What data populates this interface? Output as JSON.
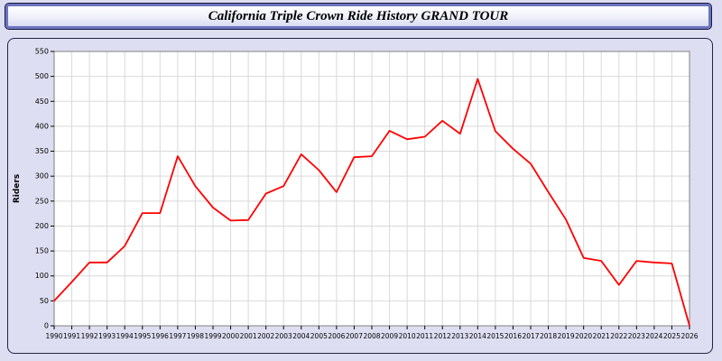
{
  "window": {
    "title": "California Triple Crown Ride History GRAND TOUR"
  },
  "colors": {
    "page_background": "#dedef2",
    "panel_border": "#222244",
    "title_border": "#6a74c0",
    "plot_background": "#ffffff",
    "grid_line": "#d9d9d9",
    "axis_line": "#808080",
    "line_color": "#ff0000",
    "text_color": "#000000"
  },
  "chart_data": {
    "type": "line",
    "title": "California Triple Crown Ride History GRAND TOUR",
    "xlabel": "",
    "ylabel": "Riders",
    "ylim": [
      0,
      550
    ],
    "ytick_step": 50,
    "grid": true,
    "legend_position": "none",
    "categories": [
      "1990",
      "1991",
      "1992",
      "1993",
      "1994",
      "1995",
      "1996",
      "1997",
      "1998",
      "1999",
      "2000",
      "2001",
      "2002",
      "2003",
      "2004",
      "2005",
      "2006",
      "2007",
      "2008",
      "2009",
      "2010",
      "2011",
      "2012",
      "2013",
      "2014",
      "2015",
      "2016",
      "2017",
      "2018",
      "2019",
      "2020",
      "2021",
      "2022",
      "2023",
      "2024",
      "2025",
      "2026"
    ],
    "series": [
      {
        "name": "Riders",
        "color": "#ff0000",
        "values": [
          50,
          88,
          127,
          127,
          160,
          226,
          226,
          340,
          280,
          237,
          211,
          212,
          265,
          280,
          344,
          312,
          268,
          338,
          340,
          391,
          374,
          379,
          411,
          385,
          495,
          390,
          355,
          325,
          268,
          213,
          136,
          130,
          82,
          130,
          127,
          125,
          0
        ]
      }
    ]
  }
}
